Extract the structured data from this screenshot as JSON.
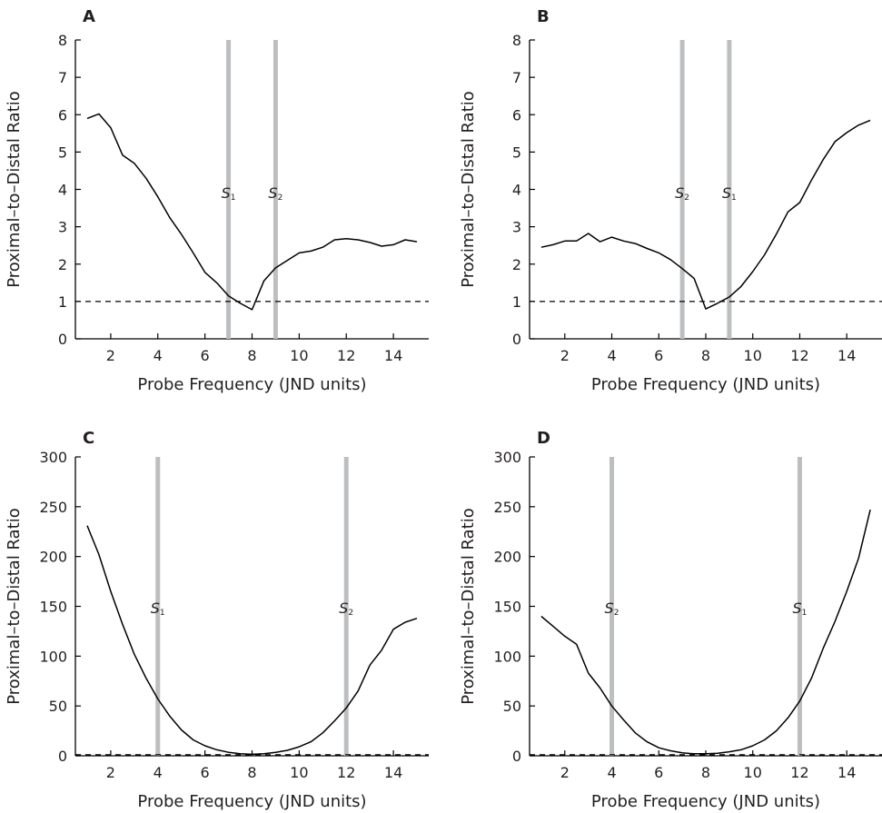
{
  "chart_data": [
    {
      "type": "line",
      "panel_label": "A",
      "xlabel": "Probe Frequency (JND units)",
      "ylabel": "Proximal–to–Distal Ratio",
      "xlim": [
        0.5,
        15.5
      ],
      "ylim": [
        0,
        8
      ],
      "xticks": [
        2,
        4,
        6,
        8,
        10,
        12,
        14
      ],
      "yticks": [
        0,
        1,
        2,
        3,
        4,
        5,
        6,
        7,
        8
      ],
      "reference_line": {
        "y": 1,
        "style": "dashed"
      },
      "stimulus_markers": [
        {
          "label": "S",
          "subscript": "1",
          "x": 7
        },
        {
          "label": "S",
          "subscript": "2",
          "x": 9
        }
      ],
      "x": [
        1,
        1.5,
        2,
        2.5,
        3,
        3.5,
        4,
        4.5,
        5,
        5.5,
        6,
        6.5,
        7,
        7.5,
        8,
        8.5,
        9,
        9.5,
        10,
        10.5,
        11,
        11.5,
        12,
        12.5,
        13,
        13.5,
        14,
        14.5,
        15
      ],
      "y": [
        5.9,
        6.02,
        5.65,
        4.92,
        4.7,
        4.3,
        3.8,
        3.25,
        2.8,
        2.3,
        1.78,
        1.5,
        1.15,
        0.95,
        0.78,
        1.55,
        1.9,
        2.1,
        2.3,
        2.35,
        2.45,
        2.65,
        2.68,
        2.65,
        2.58,
        2.48,
        2.52,
        2.65,
        2.6
      ]
    },
    {
      "type": "line",
      "panel_label": "B",
      "xlabel": "Probe Frequency (JND units)",
      "ylabel": "Proximal–to–Distal Ratio",
      "xlim": [
        0.5,
        15.5
      ],
      "ylim": [
        0,
        8
      ],
      "xticks": [
        2,
        4,
        6,
        8,
        10,
        12,
        14
      ],
      "yticks": [
        0,
        1,
        2,
        3,
        4,
        5,
        6,
        7,
        8
      ],
      "reference_line": {
        "y": 1,
        "style": "dashed"
      },
      "stimulus_markers": [
        {
          "label": "S",
          "subscript": "2",
          "x": 7
        },
        {
          "label": "S",
          "subscript": "1",
          "x": 9
        }
      ],
      "x": [
        1,
        1.5,
        2,
        2.5,
        3,
        3.5,
        4,
        4.5,
        5,
        5.5,
        6,
        6.5,
        7,
        7.5,
        8,
        8.5,
        9,
        9.5,
        10,
        10.5,
        11,
        11.5,
        12,
        12.5,
        13,
        13.5,
        14,
        14.5,
        15
      ],
      "y": [
        2.45,
        2.52,
        2.62,
        2.62,
        2.82,
        2.6,
        2.72,
        2.62,
        2.55,
        2.42,
        2.3,
        2.12,
        1.88,
        1.62,
        0.8,
        0.95,
        1.12,
        1.4,
        1.8,
        2.25,
        2.8,
        3.4,
        3.65,
        4.25,
        4.8,
        5.28,
        5.52,
        5.72,
        5.85
      ]
    },
    {
      "type": "line",
      "panel_label": "C",
      "xlabel": "Probe Frequency (JND units)",
      "ylabel": "Proximal–to–Distal Ratio",
      "xlim": [
        0.5,
        15.5
      ],
      "ylim": [
        0,
        300
      ],
      "xticks": [
        2,
        4,
        6,
        8,
        10,
        12,
        14
      ],
      "yticks": [
        0,
        50,
        100,
        150,
        200,
        250,
        300
      ],
      "reference_line": {
        "y": 1,
        "style": "dashed"
      },
      "stimulus_markers": [
        {
          "label": "S",
          "subscript": "1",
          "x": 4
        },
        {
          "label": "S",
          "subscript": "2",
          "x": 12
        }
      ],
      "x": [
        1,
        1.5,
        2,
        2.5,
        3,
        3.5,
        4,
        4.5,
        5,
        5.5,
        6,
        6.5,
        7,
        7.5,
        8,
        8.5,
        9,
        9.5,
        10,
        10.5,
        11,
        11.5,
        12,
        12.5,
        13,
        13.5,
        14,
        14.5,
        15
      ],
      "y": [
        231,
        202,
        165,
        132,
        102,
        78,
        57,
        40,
        26,
        16,
        10,
        6,
        3.5,
        2,
        1.5,
        2,
        3.5,
        5.5,
        9,
        14,
        23,
        35,
        48,
        65,
        91,
        106,
        127,
        134,
        138
      ]
    },
    {
      "type": "line",
      "panel_label": "D",
      "xlabel": "Probe Frequency (JND units)",
      "ylabel": "Proximal–to–Distal Ratio",
      "xlim": [
        0.5,
        15.5
      ],
      "ylim": [
        0,
        300
      ],
      "xticks": [
        2,
        4,
        6,
        8,
        10,
        12,
        14
      ],
      "yticks": [
        0,
        50,
        100,
        150,
        200,
        250,
        300
      ],
      "reference_line": {
        "y": 1,
        "style": "dashed"
      },
      "stimulus_markers": [
        {
          "label": "S",
          "subscript": "2",
          "x": 4
        },
        {
          "label": "S",
          "subscript": "1",
          "x": 12
        }
      ],
      "x": [
        1,
        1.5,
        2,
        2.5,
        3,
        3.5,
        4,
        4.5,
        5,
        5.5,
        6,
        6.5,
        7,
        7.5,
        8,
        8.5,
        9,
        9.5,
        10,
        10.5,
        11,
        11.5,
        12,
        12.5,
        13,
        13.5,
        14,
        14.5,
        15
      ],
      "y": [
        140,
        130,
        120,
        112,
        83,
        68,
        50,
        36,
        23,
        14,
        8,
        5,
        3,
        2,
        2,
        2.5,
        4,
        6,
        10,
        16,
        25,
        38,
        55,
        78,
        108,
        135,
        165,
        198,
        247
      ]
    }
  ],
  "colors": {
    "line": "#000000",
    "stimulus_marker": "#bcbec0",
    "axis": "#000000",
    "text": "#231f20"
  }
}
